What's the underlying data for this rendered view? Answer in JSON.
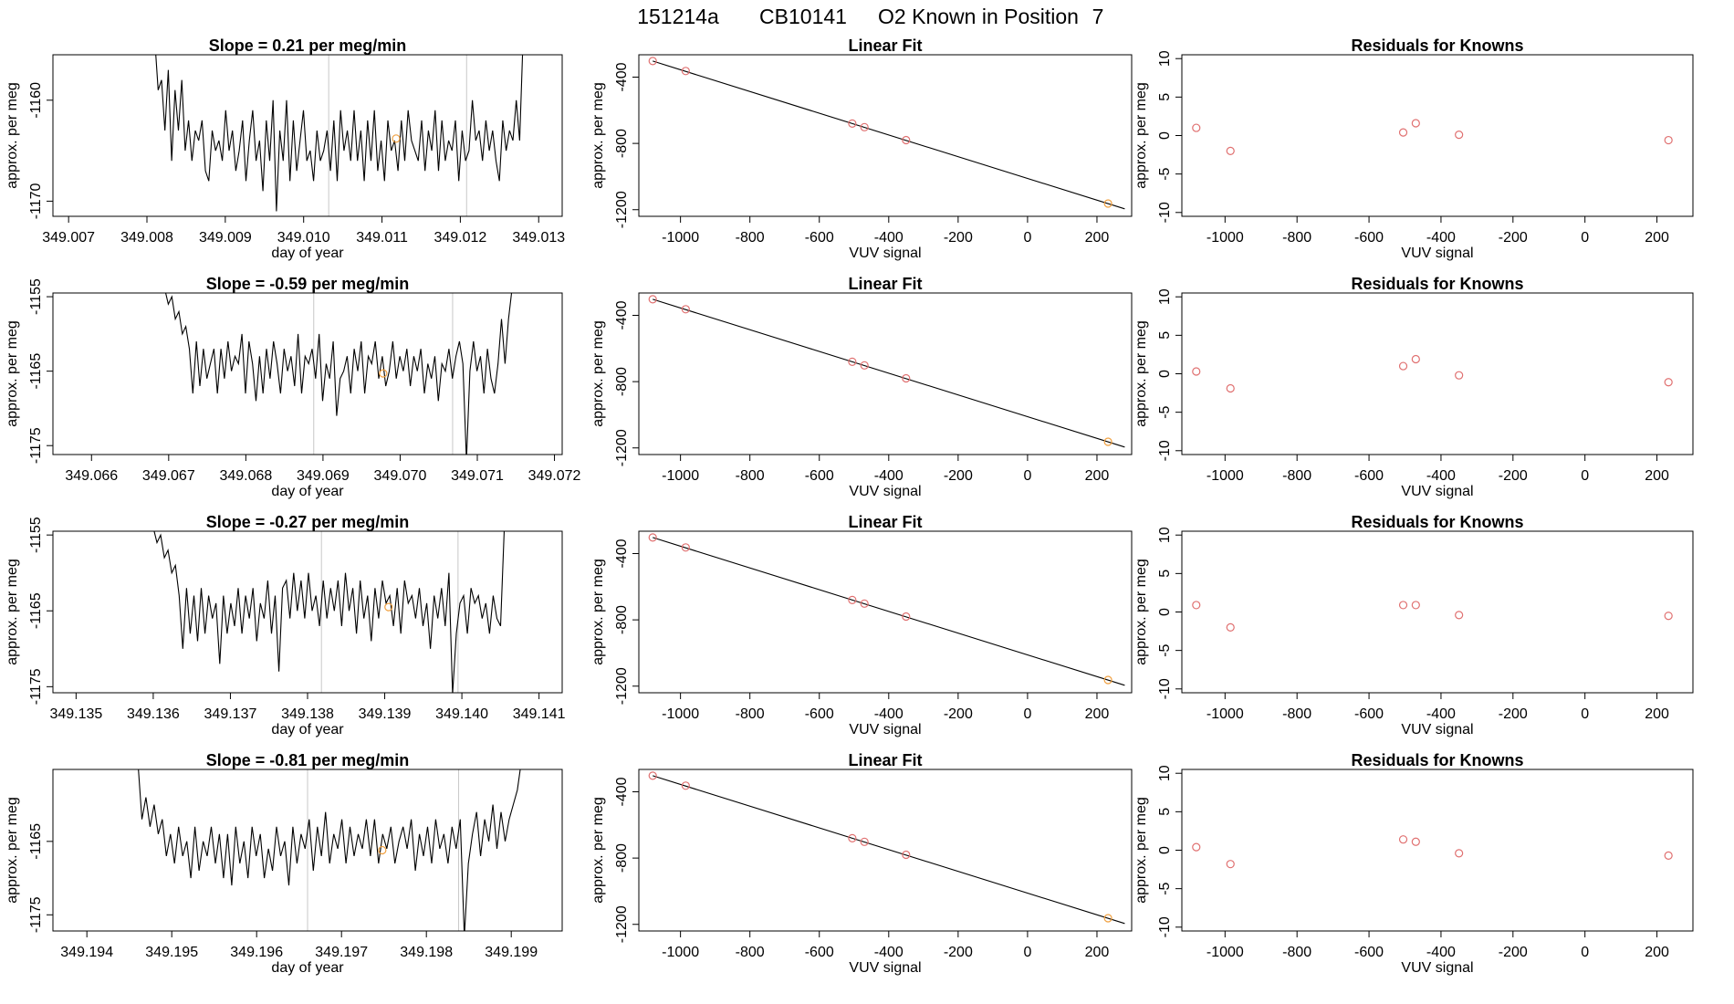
{
  "figure": {
    "title_parts": [
      "151214a",
      "CB10141",
      "O2 Known in Position",
      "7"
    ],
    "line_color": "#000000",
    "point_color": "#e07070",
    "highlight_color": "#f0a040",
    "divider_color": "#c8c8c8"
  },
  "chart_data": [
    {
      "type": "line",
      "row": 0,
      "col": 0,
      "title": "Slope =  0.21  per meg/min",
      "xlabel": "day of year",
      "ylabel": "approx. per meg",
      "xlim": [
        349.0068,
        349.0133
      ],
      "ylim": [
        -1171.5,
        -1155.5
      ],
      "xticks": [
        "349.007",
        "349.008",
        "349.009",
        "349.010",
        "349.011",
        "349.012",
        "349.013"
      ],
      "yticks": [
        -1160,
        -1170
      ],
      "x_start": 349.0081,
      "x_end": 349.0128,
      "vlines": [
        349.01032,
        349.01208
      ],
      "highlight": [
        349.01118,
        -1163.8
      ],
      "series": [
        -1154,
        -1159,
        -1158,
        -1163,
        -1157,
        -1166,
        -1159,
        -1163,
        -1158,
        -1165,
        -1162,
        -1166,
        -1163,
        -1164,
        -1162,
        -1167,
        -1168,
        -1163,
        -1165,
        -1164,
        -1166,
        -1161,
        -1165,
        -1163,
        -1167,
        -1165,
        -1162,
        -1168,
        -1164,
        -1161,
        -1166,
        -1164,
        -1169,
        -1162,
        -1166,
        -1160,
        -1171,
        -1163,
        -1166,
        -1160,
        -1168,
        -1162,
        -1167,
        -1164,
        -1161,
        -1166,
        -1165,
        -1168,
        -1163,
        -1166,
        -1165,
        -1163,
        -1167,
        -1162,
        -1168,
        -1161,
        -1165,
        -1163,
        -1166,
        -1161,
        -1166,
        -1163,
        -1168,
        -1162,
        -1166,
        -1161,
        -1167,
        -1164,
        -1168,
        -1162,
        -1165,
        -1164,
        -1167,
        -1162,
        -1166,
        -1161,
        -1164,
        -1165,
        -1166,
        -1162,
        -1167,
        -1163,
        -1165,
        -1161,
        -1167,
        -1162,
        -1166,
        -1164,
        -1165,
        -1162,
        -1168,
        -1163,
        -1166,
        -1165,
        -1160,
        -1164,
        -1163,
        -1166,
        -1162,
        -1165,
        -1163,
        -1166,
        -1168,
        -1162,
        -1165,
        -1163,
        -1164,
        -1160,
        -1164,
        -1154
      ]
    },
    {
      "type": "scatter",
      "row": 0,
      "col": 1,
      "title": "Linear Fit",
      "xlabel": "VUV signal",
      "ylabel": "approx. per meg",
      "xlim": [
        -1120,
        300
      ],
      "ylim": [
        -1240,
        -265
      ],
      "xticks": [
        -1000,
        -800,
        -600,
        -400,
        -200,
        0,
        200
      ],
      "yticks": [
        -400,
        -800,
        -1200
      ],
      "fit_line": [
        [
          -1080,
          -303
        ],
        [
          280,
          -1195
        ]
      ],
      "points": [
        [
          -1080,
          -303
        ],
        [
          -985,
          -363
        ],
        [
          -505,
          -680
        ],
        [
          -470,
          -702
        ],
        [
          -350,
          -780
        ]
      ],
      "highlight_points": [
        [
          232,
          -1163
        ]
      ]
    },
    {
      "type": "scatter",
      "row": 0,
      "col": 2,
      "title": "Residuals for Knowns",
      "xlabel": "VUV signal",
      "ylabel": "approx. per meg",
      "xlim": [
        -1120,
        300
      ],
      "ylim": [
        -10.5,
        10.5
      ],
      "xticks": [
        -1000,
        -800,
        -600,
        -400,
        -200,
        0,
        200
      ],
      "yticks": [
        10,
        5,
        0,
        -5,
        -10
      ],
      "points": [
        [
          -1080,
          1.0
        ],
        [
          -985,
          -2.0
        ],
        [
          -505,
          0.4
        ],
        [
          -470,
          1.6
        ],
        [
          -350,
          0.1
        ],
        [
          232,
          -0.6
        ]
      ]
    },
    {
      "type": "line",
      "row": 1,
      "col": 0,
      "title": "Slope =  -0.59  per meg/min",
      "xlabel": "day of year",
      "ylabel": "approx. per meg",
      "xlim": [
        349.0655,
        349.0721
      ],
      "ylim": [
        -1176.2,
        -1154.5
      ],
      "xticks": [
        "349.066",
        "349.067",
        "349.068",
        "349.069",
        "349.070",
        "349.071",
        "349.072"
      ],
      "yticks": [
        -1155,
        -1165,
        -1175
      ],
      "x_start": 349.06695,
      "x_end": 349.07145,
      "vlines": [
        349.06888,
        349.07068
      ],
      "highlight": [
        349.06978,
        -1165.3
      ],
      "series": [
        -1154,
        -1156,
        -1155,
        -1158,
        -1157,
        -1160,
        -1159,
        -1162,
        -1168,
        -1161,
        -1167,
        -1162,
        -1166,
        -1164,
        -1162,
        -1168,
        -1162,
        -1166,
        -1161,
        -1165,
        -1163,
        -1164,
        -1160,
        -1168,
        -1161,
        -1164,
        -1169,
        -1163,
        -1168,
        -1162,
        -1166,
        -1161,
        -1164,
        -1168,
        -1162,
        -1165,
        -1163,
        -1167,
        -1160,
        -1168,
        -1163,
        -1164,
        -1162,
        -1166,
        -1160,
        -1169,
        -1164,
        -1166,
        -1161,
        -1171,
        -1166,
        -1165,
        -1163,
        -1168,
        -1162,
        -1165,
        -1161,
        -1168,
        -1163,
        -1164,
        -1161,
        -1166,
        -1163,
        -1167,
        -1165,
        -1161,
        -1166,
        -1163,
        -1165,
        -1162,
        -1167,
        -1163,
        -1165,
        -1162,
        -1168,
        -1164,
        -1166,
        -1163,
        -1169,
        -1164,
        -1165,
        -1162,
        -1166,
        -1163,
        -1161,
        -1164,
        -1177,
        -1165,
        -1161,
        -1165,
        -1163,
        -1168,
        -1162,
        -1166,
        -1168,
        -1164,
        -1158,
        -1164,
        -1158,
        -1154
      ]
    },
    {
      "type": "scatter",
      "row": 1,
      "col": 1,
      "title": "Linear Fit",
      "xlabel": "VUV signal",
      "ylabel": "approx. per meg",
      "xlim": [
        -1120,
        300
      ],
      "ylim": [
        -1240,
        -265
      ],
      "xticks": [
        -1000,
        -800,
        -600,
        -400,
        -200,
        0,
        200
      ],
      "yticks": [
        -400,
        -800,
        -1200
      ],
      "fit_line": [
        [
          -1080,
          -303
        ],
        [
          280,
          -1195
        ]
      ],
      "points": [
        [
          -1080,
          -303
        ],
        [
          -985,
          -363
        ],
        [
          -505,
          -680
        ],
        [
          -470,
          -702
        ],
        [
          -350,
          -780
        ]
      ],
      "highlight_points": [
        [
          232,
          -1163
        ]
      ]
    },
    {
      "type": "scatter",
      "row": 1,
      "col": 2,
      "title": "Residuals for Knowns",
      "xlabel": "VUV signal",
      "ylabel": "approx. per meg",
      "xlim": [
        -1120,
        300
      ],
      "ylim": [
        -10.5,
        10.5
      ],
      "xticks": [
        -1000,
        -800,
        -600,
        -400,
        -200,
        0,
        200
      ],
      "yticks": [
        10,
        5,
        0,
        -5,
        -10
      ],
      "points": [
        [
          -1080,
          0.3
        ],
        [
          -985,
          -1.9
        ],
        [
          -505,
          1.0
        ],
        [
          -470,
          1.9
        ],
        [
          -350,
          -0.2
        ],
        [
          232,
          -1.1
        ]
      ]
    },
    {
      "type": "line",
      "row": 2,
      "col": 0,
      "title": "Slope =  -0.27  per meg/min",
      "xlabel": "day of year",
      "ylabel": "approx. per meg",
      "xlim": [
        349.1347,
        349.1413
      ],
      "ylim": [
        -1175.8,
        -1154.5
      ],
      "xticks": [
        "349.135",
        "349.136",
        "349.137",
        "349.138",
        "349.139",
        "349.140",
        "349.141"
      ],
      "yticks": [
        -1155,
        -1165,
        -1175
      ],
      "x_start": 349.136,
      "x_end": 349.14055,
      "vlines": [
        349.13818,
        349.13995
      ],
      "highlight": [
        349.13905,
        -1164.5
      ],
      "series": [
        -1154,
        -1156,
        -1155,
        -1158,
        -1157,
        -1160,
        -1159,
        -1163,
        -1170,
        -1162,
        -1168,
        -1163,
        -1169,
        -1162,
        -1168,
        -1163,
        -1166,
        -1164,
        -1172,
        -1163,
        -1168,
        -1164,
        -1167,
        -1162,
        -1168,
        -1163,
        -1166,
        -1162,
        -1169,
        -1164,
        -1166,
        -1161,
        -1168,
        -1163,
        -1173,
        -1162,
        -1161,
        -1166,
        -1160,
        -1165,
        -1161,
        -1166,
        -1160,
        -1165,
        -1163,
        -1167,
        -1161,
        -1166,
        -1162,
        -1165,
        -1161,
        -1167,
        -1160,
        -1165,
        -1162,
        -1168,
        -1161,
        -1166,
        -1163,
        -1169,
        -1162,
        -1166,
        -1161,
        -1164,
        -1163,
        -1167,
        -1162,
        -1168,
        -1161,
        -1164,
        -1163,
        -1166,
        -1162,
        -1167,
        -1164,
        -1170,
        -1163,
        -1166,
        -1162,
        -1167,
        -1160,
        -1176,
        -1168,
        -1164,
        -1163,
        -1168,
        -1162,
        -1164,
        -1163,
        -1166,
        -1164,
        -1168,
        -1163,
        -1166,
        -1167,
        -1154
      ]
    },
    {
      "type": "scatter",
      "row": 2,
      "col": 1,
      "title": "Linear Fit",
      "xlabel": "VUV signal",
      "ylabel": "approx. per meg",
      "xlim": [
        -1120,
        300
      ],
      "ylim": [
        -1240,
        -265
      ],
      "xticks": [
        -1000,
        -800,
        -600,
        -400,
        -200,
        0,
        200
      ],
      "yticks": [
        -400,
        -800,
        -1200
      ],
      "fit_line": [
        [
          -1080,
          -303
        ],
        [
          280,
          -1195
        ]
      ],
      "points": [
        [
          -1080,
          -303
        ],
        [
          -985,
          -363
        ],
        [
          -505,
          -680
        ],
        [
          -470,
          -702
        ],
        [
          -350,
          -780
        ]
      ],
      "highlight_points": [
        [
          232,
          -1163
        ]
      ]
    },
    {
      "type": "scatter",
      "row": 2,
      "col": 2,
      "title": "Residuals for Knowns",
      "xlabel": "VUV signal",
      "ylabel": "approx. per meg",
      "xlim": [
        -1120,
        300
      ],
      "ylim": [
        -10.5,
        10.5
      ],
      "xticks": [
        -1000,
        -800,
        -600,
        -400,
        -200,
        0,
        200
      ],
      "yticks": [
        10,
        5,
        0,
        -5,
        -10
      ],
      "points": [
        [
          -1080,
          0.9
        ],
        [
          -985,
          -2.0
        ],
        [
          -505,
          0.9
        ],
        [
          -470,
          0.9
        ],
        [
          -350,
          -0.4
        ],
        [
          232,
          -0.5
        ]
      ]
    },
    {
      "type": "line",
      "row": 3,
      "col": 0,
      "title": "Slope =  -0.81  per meg/min",
      "xlabel": "day of year",
      "ylabel": "approx. per meg",
      "xlim": [
        349.1936,
        349.1996
      ],
      "ylim": [
        -1177.2,
        -1155.2
      ],
      "xticks": [
        "349.194",
        "349.195",
        "349.196",
        "349.197",
        "349.198",
        "349.199"
      ],
      "yticks": [
        -1165,
        -1175
      ],
      "x_start": 349.1946,
      "x_end": 349.19912,
      "vlines": [
        349.1966,
        349.19838
      ],
      "highlight": [
        349.19748,
        -1166.2
      ],
      "series": [
        -1154,
        -1162,
        -1159,
        -1163,
        -1160,
        -1164,
        -1162,
        -1167,
        -1164,
        -1168,
        -1163,
        -1167,
        -1165,
        -1170,
        -1163,
        -1169,
        -1165,
        -1167,
        -1163,
        -1168,
        -1164,
        -1170,
        -1164,
        -1171,
        -1163,
        -1168,
        -1165,
        -1170,
        -1163,
        -1167,
        -1164,
        -1170,
        -1166,
        -1169,
        -1163,
        -1167,
        -1165,
        -1171,
        -1163,
        -1168,
        -1164,
        -1166,
        -1162,
        -1169,
        -1163,
        -1167,
        -1161,
        -1168,
        -1164,
        -1166,
        -1162,
        -1168,
        -1163,
        -1167,
        -1164,
        -1166,
        -1162,
        -1167,
        -1162,
        -1168,
        -1164,
        -1166,
        -1163,
        -1168,
        -1165,
        -1163,
        -1166,
        -1162,
        -1169,
        -1164,
        -1167,
        -1163,
        -1168,
        -1162,
        -1166,
        -1164,
        -1168,
        -1163,
        -1166,
        -1162,
        -1178,
        -1168,
        -1164,
        -1161,
        -1167,
        -1162,
        -1165,
        -1160,
        -1166,
        -1161,
        -1165,
        -1162,
        -1160,
        -1158,
        -1154
      ]
    },
    {
      "type": "scatter",
      "row": 3,
      "col": 1,
      "title": "Linear Fit",
      "xlabel": "VUV signal",
      "ylabel": "approx. per meg",
      "xlim": [
        -1120,
        300
      ],
      "ylim": [
        -1240,
        -265
      ],
      "xticks": [
        -1000,
        -800,
        -600,
        -400,
        -200,
        0,
        200
      ],
      "yticks": [
        -400,
        -800,
        -1200
      ],
      "fit_line": [
        [
          -1080,
          -303
        ],
        [
          280,
          -1195
        ]
      ],
      "points": [
        [
          -1080,
          -303
        ],
        [
          -985,
          -363
        ],
        [
          -505,
          -680
        ],
        [
          -470,
          -702
        ],
        [
          -350,
          -780
        ]
      ],
      "highlight_points": [
        [
          232,
          -1163
        ]
      ]
    },
    {
      "type": "scatter",
      "row": 3,
      "col": 2,
      "title": "Residuals for Knowns",
      "xlabel": "VUV signal",
      "ylabel": "approx. per meg",
      "xlim": [
        -1120,
        300
      ],
      "ylim": [
        -10.5,
        10.5
      ],
      "xticks": [
        -1000,
        -800,
        -600,
        -400,
        -200,
        0,
        200
      ],
      "yticks": [
        10,
        5,
        0,
        -5,
        -10
      ],
      "points": [
        [
          -1080,
          0.4
        ],
        [
          -985,
          -1.8
        ],
        [
          -505,
          1.4
        ],
        [
          -470,
          1.1
        ],
        [
          -350,
          -0.4
        ],
        [
          232,
          -0.7
        ]
      ]
    }
  ]
}
